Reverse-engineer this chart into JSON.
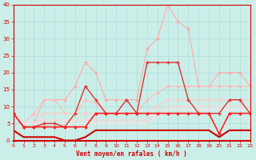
{
  "x": [
    0,
    1,
    2,
    3,
    4,
    5,
    6,
    7,
    8,
    9,
    10,
    11,
    12,
    13,
    14,
    15,
    16,
    17,
    18,
    19,
    20,
    21,
    22,
    23
  ],
  "series": [
    {
      "name": "rafales_lightest",
      "color": "#ffaaaa",
      "linewidth": 0.8,
      "marker": "D",
      "markersize": 1.5,
      "values": [
        8,
        5,
        5,
        12,
        12,
        12,
        16,
        23,
        20,
        12,
        12,
        12,
        12,
        27,
        30,
        40,
        35,
        33,
        16,
        16,
        20,
        20,
        20,
        16
      ]
    },
    {
      "name": "line_light1",
      "color": "#ffbbbb",
      "linewidth": 0.8,
      "marker": "D",
      "markersize": 1.5,
      "values": [
        8,
        5,
        8,
        12,
        12,
        8,
        8,
        12,
        11,
        8,
        8,
        8,
        8,
        12,
        14,
        16,
        16,
        16,
        16,
        16,
        16,
        16,
        16,
        16
      ]
    },
    {
      "name": "line_light2",
      "color": "#ffcccc",
      "linewidth": 0.8,
      "marker": "D",
      "markersize": 1.5,
      "values": [
        8,
        5,
        5,
        8,
        8,
        8,
        8,
        8,
        8,
        8,
        8,
        8,
        8,
        8,
        10,
        12,
        12,
        12,
        12,
        12,
        12,
        12,
        12,
        12
      ]
    },
    {
      "name": "line_light3",
      "color": "#ffd5d5",
      "linewidth": 0.8,
      "marker": "D",
      "markersize": 1.5,
      "values": [
        8,
        5,
        5,
        6,
        6,
        6,
        6,
        6,
        6,
        6,
        6,
        6,
        6,
        6,
        8,
        10,
        10,
        10,
        10,
        10,
        10,
        10,
        10,
        10
      ]
    },
    {
      "name": "line_light4",
      "color": "#ffe5e5",
      "linewidth": 0.8,
      "marker": null,
      "markersize": 0,
      "values": [
        8,
        5,
        5,
        5,
        5,
        5,
        5,
        5,
        5,
        5,
        5,
        5,
        5,
        5,
        7,
        9,
        9,
        9,
        9,
        9,
        9,
        9,
        9,
        9
      ]
    },
    {
      "name": "vent_medium_dark",
      "color": "#dd3333",
      "linewidth": 1.0,
      "marker": "+",
      "markersize": 3,
      "values": [
        8,
        4,
        4,
        5,
        5,
        4,
        8,
        16,
        12,
        8,
        8,
        12,
        8,
        23,
        23,
        23,
        23,
        12,
        8,
        8,
        8,
        12,
        12,
        8
      ]
    },
    {
      "name": "vent_moyen_dark",
      "color": "#ff2222",
      "linewidth": 1.2,
      "marker": "D",
      "markersize": 1.5,
      "values": [
        8,
        4,
        4,
        4,
        4,
        4,
        4,
        4,
        8,
        8,
        8,
        8,
        8,
        8,
        8,
        8,
        8,
        8,
        8,
        8,
        2,
        8,
        8,
        8
      ]
    },
    {
      "name": "vent_bottom",
      "color": "#cc0000",
      "linewidth": 1.5,
      "marker": null,
      "markersize": 0,
      "values": [
        3,
        1,
        1,
        1,
        1,
        0,
        0,
        1,
        3,
        3,
        3,
        3,
        3,
        3,
        3,
        3,
        3,
        3,
        3,
        3,
        1,
        3,
        3,
        3
      ]
    }
  ],
  "xlim": [
    0,
    23
  ],
  "ylim": [
    0,
    40
  ],
  "yticks": [
    0,
    5,
    10,
    15,
    20,
    25,
    30,
    35,
    40
  ],
  "xticks": [
    0,
    1,
    2,
    3,
    4,
    5,
    6,
    7,
    8,
    9,
    10,
    11,
    12,
    13,
    14,
    15,
    16,
    17,
    18,
    19,
    20,
    21,
    22,
    23
  ],
  "xlabel": "Vent moyen/en rafales ( km/h )",
  "background_color": "#cceee8",
  "grid_color": "#aadddd",
  "axis_color": "#cc0000",
  "label_color": "#cc0000"
}
